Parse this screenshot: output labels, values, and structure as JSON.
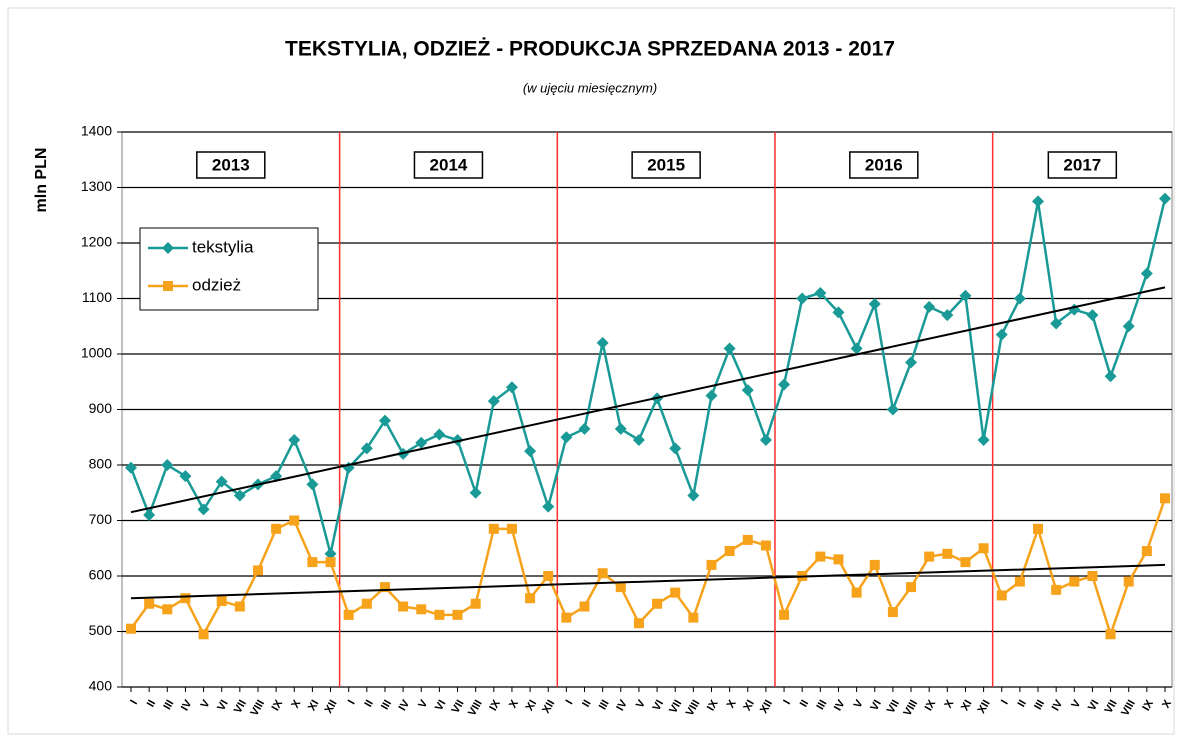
{
  "chart_data": {
    "type": "line",
    "title": "TEKSTYLIA, ODZIEŻ - PRODUKCJA SPRZEDANA  2013 - 2017",
    "subtitle": "(w ujęciu miesięcznym)",
    "y_label": "mln PLN",
    "years": [
      "2013",
      "2014",
      "2015",
      "2016",
      "2017"
    ],
    "categories": [
      "I",
      "II",
      "III",
      "IV",
      "V",
      "VI",
      "VII",
      "VIII",
      "IX",
      "X",
      "XI",
      "XII",
      "I",
      "II",
      "III",
      "IV",
      "V",
      "VI",
      "VII",
      "VIII",
      "IX",
      "X",
      "XI",
      "XII",
      "I",
      "II",
      "III",
      "IV",
      "V",
      "VI",
      "VII",
      "VIII",
      "IX",
      "X",
      "XI",
      "XII",
      "I",
      "II",
      "III",
      "IV",
      "V",
      "VI",
      "VII",
      "VIII",
      "IX",
      "X",
      "XI",
      "XII",
      "I",
      "II",
      "III",
      "IV",
      "V",
      "VI",
      "VII",
      "VIII",
      "IX",
      "X"
    ],
    "series": [
      {
        "name": "tekstylia",
        "color": "#1a9a96",
        "marker": "diamond",
        "trend": [
          715,
          1120
        ],
        "values": [
          795,
          710,
          800,
          780,
          720,
          770,
          745,
          765,
          780,
          845,
          765,
          640,
          795,
          830,
          880,
          820,
          840,
          855,
          845,
          750,
          915,
          940,
          825,
          725,
          850,
          865,
          1020,
          865,
          845,
          920,
          830,
          745,
          925,
          1010,
          935,
          845,
          945,
          1100,
          1110,
          1075,
          1010,
          1090,
          900,
          985,
          1085,
          1070,
          1105,
          845,
          1035,
          1100,
          1275,
          1055,
          1080,
          1070,
          960,
          1050,
          1145,
          1280
        ]
      },
      {
        "name": "odzież",
        "color": "#f7a21b",
        "marker": "square",
        "trend": [
          560,
          620
        ],
        "values": [
          505,
          550,
          540,
          560,
          495,
          555,
          545,
          610,
          685,
          700,
          625,
          625,
          530,
          550,
          580,
          545,
          540,
          530,
          530,
          550,
          685,
          685,
          560,
          600,
          525,
          545,
          605,
          580,
          515,
          550,
          570,
          525,
          620,
          645,
          665,
          655,
          530,
          600,
          635,
          630,
          570,
          620,
          535,
          580,
          635,
          640,
          625,
          650,
          565,
          590,
          685,
          575,
          590,
          600,
          495,
          590,
          645,
          740
        ]
      }
    ],
    "ylim": [
      400,
      1400
    ],
    "yticks": [
      400,
      500,
      600,
      700,
      800,
      900,
      1000,
      1100,
      1200,
      1300,
      1400
    ],
    "grid": true,
    "legend": "upper left"
  }
}
